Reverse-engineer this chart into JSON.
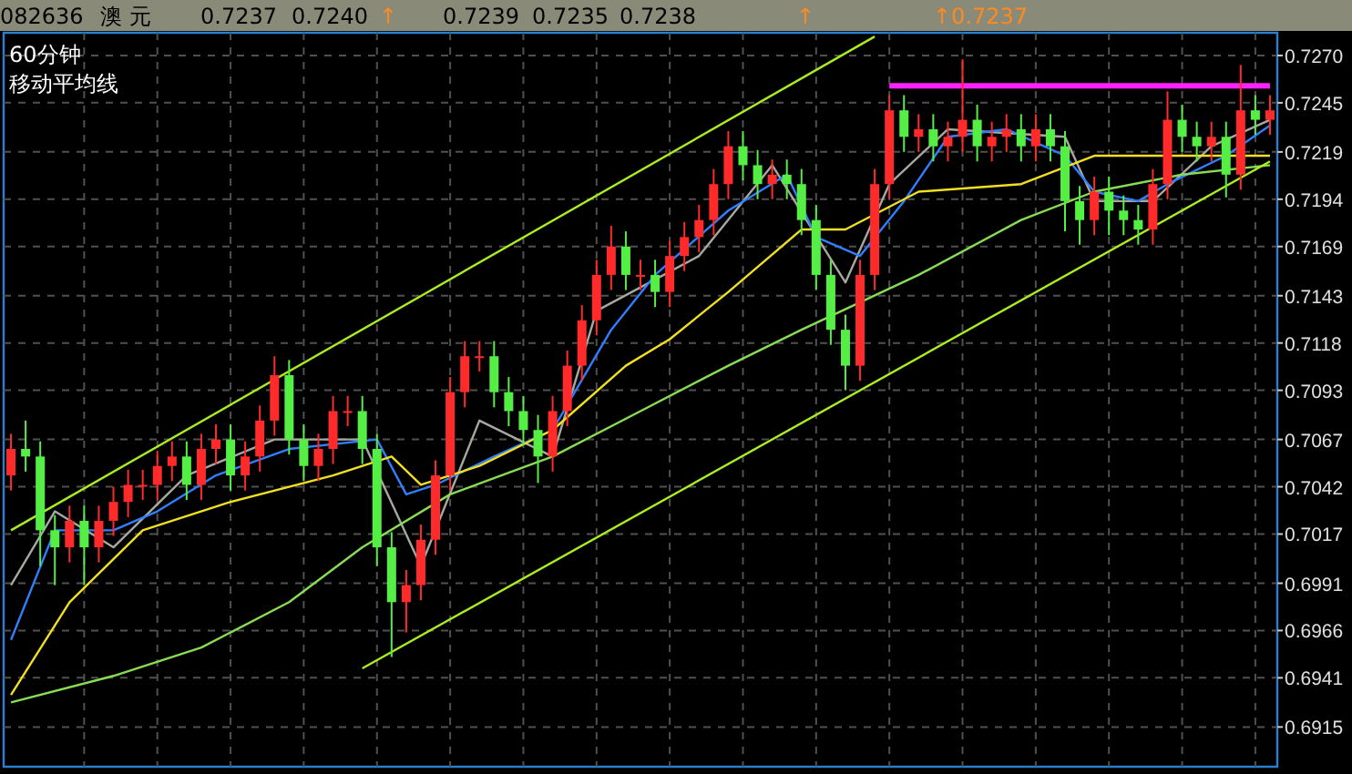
{
  "chart_data": {
    "type": "candlestick",
    "title": "澳 元",
    "subtitle": "60分钟",
    "annotations": [
      "移动平均线",
      "082636",
      "0.7237",
      "0.7240",
      "↑",
      "0.7239",
      "0.7235",
      "0.7238",
      "↑",
      "↑0.7237"
    ],
    "categories": [
      null,
      null,
      null,
      null,
      null,
      null,
      null,
      null,
      null,
      null,
      null,
      null,
      null,
      null,
      null,
      null,
      null,
      null,
      null,
      null,
      null,
      null,
      null,
      null,
      null,
      null,
      null,
      null,
      null,
      null,
      null,
      null,
      null,
      null,
      null,
      null,
      null,
      null,
      null,
      null,
      null,
      null,
      null,
      null,
      null,
      null,
      null,
      null,
      null,
      null,
      null,
      null,
      null,
      null,
      null,
      null,
      null,
      null,
      null,
      null,
      null,
      null,
      null,
      null,
      null,
      null,
      null,
      null,
      null,
      null,
      null,
      null,
      null,
      null,
      null,
      null,
      null,
      null,
      null,
      null,
      null,
      null,
      null,
      null,
      null,
      null,
      null
    ],
    "ohlc": [
      [
        0.7048,
        0.707,
        0.704,
        0.7062
      ],
      [
        0.7062,
        0.7077,
        0.705,
        0.7058
      ],
      [
        0.7058,
        0.7066,
        0.7,
        0.7019
      ],
      [
        0.7019,
        0.7027,
        0.699,
        0.701
      ],
      [
        0.701,
        0.7032,
        0.7002,
        0.7024
      ],
      [
        0.7024,
        0.7032,
        0.699,
        0.701
      ],
      [
        0.701,
        0.7032,
        0.7002,
        0.7024
      ],
      [
        0.7024,
        0.7042,
        0.7016,
        0.7034
      ],
      [
        0.7034,
        0.7051,
        0.7026,
        0.7043
      ],
      [
        0.7043,
        0.7051,
        0.7035,
        0.7043
      ],
      [
        0.7043,
        0.7061,
        0.7035,
        0.7053
      ],
      [
        0.7053,
        0.7066,
        0.7045,
        0.7058
      ],
      [
        0.7058,
        0.7066,
        0.7035,
        0.7043
      ],
      [
        0.7043,
        0.707,
        0.7035,
        0.7062
      ],
      [
        0.7062,
        0.7075,
        0.7054,
        0.7067
      ],
      [
        0.7067,
        0.7075,
        0.704,
        0.7048
      ],
      [
        0.7048,
        0.7066,
        0.704,
        0.7058
      ],
      [
        0.7058,
        0.7085,
        0.705,
        0.7077
      ],
      [
        0.7077,
        0.7111,
        0.7069,
        0.7101
      ],
      [
        0.7101,
        0.7109,
        0.7059,
        0.7067
      ],
      [
        0.7067,
        0.7075,
        0.7045,
        0.7053
      ],
      [
        0.7053,
        0.707,
        0.7045,
        0.7062
      ],
      [
        0.7062,
        0.709,
        0.7054,
        0.7082
      ],
      [
        0.7082,
        0.709,
        0.7074,
        0.7082
      ],
      [
        0.7082,
        0.709,
        0.7054,
        0.7062
      ],
      [
        0.7062,
        0.707,
        0.7,
        0.701
      ],
      [
        0.701,
        0.7018,
        0.6952,
        0.6981
      ],
      [
        0.6981,
        0.6998,
        0.6965,
        0.699
      ],
      [
        0.699,
        0.7022,
        0.6982,
        0.7014
      ],
      [
        0.7014,
        0.7056,
        0.7006,
        0.7048
      ],
      [
        0.7048,
        0.71,
        0.704,
        0.7092
      ],
      [
        0.7092,
        0.7119,
        0.7084,
        0.7111
      ],
      [
        0.7111,
        0.7119,
        0.7103,
        0.7111
      ],
      [
        0.7111,
        0.7119,
        0.7084,
        0.7092
      ],
      [
        0.7092,
        0.71,
        0.7074,
        0.7082
      ],
      [
        0.7082,
        0.709,
        0.7064,
        0.7072
      ],
      [
        0.7072,
        0.708,
        0.7044,
        0.7058
      ],
      [
        0.7058,
        0.709,
        0.705,
        0.7082
      ],
      [
        0.7082,
        0.7114,
        0.7074,
        0.7106
      ],
      [
        0.7106,
        0.7138,
        0.7098,
        0.713
      ],
      [
        0.713,
        0.7162,
        0.7122,
        0.7154
      ],
      [
        0.7154,
        0.718,
        0.7146,
        0.7169
      ],
      [
        0.7169,
        0.7177,
        0.7146,
        0.7154
      ],
      [
        0.7154,
        0.7162,
        0.7146,
        0.7154
      ],
      [
        0.7154,
        0.7162,
        0.7137,
        0.7145
      ],
      [
        0.7145,
        0.7172,
        0.7137,
        0.7164
      ],
      [
        0.7164,
        0.7182,
        0.7156,
        0.7174
      ],
      [
        0.7174,
        0.7191,
        0.7166,
        0.7183
      ],
      [
        0.7183,
        0.721,
        0.7175,
        0.7202
      ],
      [
        0.7202,
        0.723,
        0.7194,
        0.7222
      ],
      [
        0.7222,
        0.723,
        0.7204,
        0.7212
      ],
      [
        0.7212,
        0.722,
        0.7194,
        0.7202
      ],
      [
        0.7202,
        0.7215,
        0.7194,
        0.7207
      ],
      [
        0.7207,
        0.7215,
        0.7194,
        0.7202
      ],
      [
        0.7202,
        0.721,
        0.7175,
        0.7183
      ],
      [
        0.7183,
        0.7191,
        0.7146,
        0.7154
      ],
      [
        0.7154,
        0.7162,
        0.7117,
        0.7125
      ],
      [
        0.7125,
        0.7133,
        0.7093,
        0.7106
      ],
      [
        0.7106,
        0.7162,
        0.7098,
        0.7154
      ],
      [
        0.7154,
        0.721,
        0.7146,
        0.7202
      ],
      [
        0.7202,
        0.7249,
        0.7194,
        0.7241
      ],
      [
        0.7241,
        0.7249,
        0.7219,
        0.7227
      ],
      [
        0.7227,
        0.7239,
        0.7219,
        0.7231
      ],
      [
        0.7231,
        0.7239,
        0.7214,
        0.7222
      ],
      [
        0.7222,
        0.7235,
        0.7214,
        0.7227
      ],
      [
        0.7227,
        0.7268,
        0.7219,
        0.7236
      ],
      [
        0.7236,
        0.7244,
        0.7214,
        0.7222
      ],
      [
        0.7222,
        0.7235,
        0.7214,
        0.7227
      ],
      [
        0.7227,
        0.7239,
        0.7219,
        0.7231
      ],
      [
        0.7231,
        0.7239,
        0.7214,
        0.7222
      ],
      [
        0.7222,
        0.7239,
        0.7214,
        0.7231
      ],
      [
        0.7231,
        0.7239,
        0.7214,
        0.7222
      ],
      [
        0.7222,
        0.723,
        0.7177,
        0.7193
      ],
      [
        0.7193,
        0.7201,
        0.717,
        0.7183
      ],
      [
        0.7183,
        0.7206,
        0.7175,
        0.7198
      ],
      [
        0.7198,
        0.7206,
        0.7175,
        0.7188
      ],
      [
        0.7188,
        0.7196,
        0.7175,
        0.7183
      ],
      [
        0.7183,
        0.7191,
        0.717,
        0.7178
      ],
      [
        0.7178,
        0.721,
        0.717,
        0.7202
      ],
      [
        0.7202,
        0.7251,
        0.7194,
        0.7236
      ],
      [
        0.7236,
        0.7244,
        0.7219,
        0.7227
      ],
      [
        0.7227,
        0.7235,
        0.7214,
        0.7222
      ],
      [
        0.7222,
        0.7235,
        0.7214,
        0.7227
      ],
      [
        0.7227,
        0.7235,
        0.7195,
        0.7207
      ],
      [
        0.7207,
        0.7265,
        0.7199,
        0.7241
      ],
      [
        0.7241,
        0.7249,
        0.7228,
        0.7236
      ],
      [
        0.7236,
        0.7249,
        0.7228,
        0.7241
      ]
    ],
    "series": [
      {
        "type": "line",
        "color": "#a8a8a0",
        "values": [
          0.699,
          null,
          null,
          0.7029,
          null,
          null,
          null,
          0.701,
          null,
          null,
          null,
          null,
          0.7048,
          null,
          null,
          null,
          null,
          null,
          0.7067,
          null,
          null,
          null,
          null,
          null,
          0.7067,
          null,
          null,
          null,
          0.7,
          null,
          null,
          null,
          0.7077,
          null,
          null,
          null,
          null,
          0.7058,
          null,
          null,
          0.7135,
          null,
          null,
          null,
          null,
          null,
          null,
          0.7164,
          null,
          null,
          null,
          null,
          0.7212,
          null,
          null,
          null,
          null,
          0.715,
          null,
          null,
          0.7202,
          null,
          null,
          null,
          0.7231,
          null,
          null,
          null,
          null,
          null,
          null,
          null,
          0.7227,
          null,
          0.7193,
          null,
          null,
          null,
          0.7193,
          null,
          null,
          null,
          0.7222,
          null,
          null,
          null,
          0.7236
        ]
      },
      {
        "type": "line",
        "color": "#2f7fff",
        "values": [
          0.6961,
          null,
          null,
          0.7019,
          null,
          null,
          null,
          0.7019,
          null,
          null,
          0.7029,
          null,
          null,
          null,
          0.7048,
          null,
          null,
          null,
          null,
          0.7062,
          null,
          null,
          null,
          null,
          null,
          0.7067,
          null,
          0.7038,
          null,
          0.7043,
          null,
          null,
          null,
          0.7058,
          null,
          null,
          null,
          0.7072,
          null,
          null,
          null,
          0.7125,
          null,
          null,
          0.7154,
          null,
          null,
          null,
          null,
          0.7188,
          null,
          null,
          null,
          0.7207,
          null,
          0.7174,
          null,
          null,
          0.7164,
          null,
          null,
          0.7193,
          null,
          null,
          0.7227,
          null,
          null,
          null,
          0.7231,
          null,
          null,
          null,
          0.7217,
          null,
          0.7198,
          null,
          null,
          0.7193,
          null,
          0.7202,
          null,
          null,
          null,
          0.7217,
          null,
          null,
          0.7233
        ]
      },
      {
        "type": "line",
        "color": "#f0e020",
        "values": [
          0.6932,
          null,
          null,
          null,
          0.6981,
          null,
          null,
          null,
          null,
          0.7019,
          null,
          null,
          null,
          null,
          null,
          0.7034,
          null,
          null,
          null,
          null,
          null,
          null,
          0.7048,
          null,
          null,
          null,
          0.7058,
          null,
          0.7043,
          null,
          null,
          null,
          0.7053,
          null,
          null,
          null,
          null,
          0.7072,
          null,
          null,
          null,
          null,
          0.7106,
          null,
          null,
          0.712,
          null,
          null,
          null,
          0.7145,
          null,
          null,
          null,
          null,
          0.7178,
          null,
          null,
          0.7178,
          null,
          null,
          null,
          null,
          0.7198,
          null,
          null,
          null,
          null,
          null,
          null,
          0.7202,
          null,
          null,
          null,
          null,
          0.7217,
          null,
          null,
          null,
          null,
          0.7217,
          null,
          null,
          null,
          null,
          null,
          null,
          0.7217
        ]
      },
      {
        "type": "line",
        "color": "#88dd55",
        "values": [
          0.6928,
          null,
          null,
          null,
          null,
          null,
          null,
          0.6942,
          null,
          null,
          null,
          null,
          null,
          0.6957,
          null,
          null,
          null,
          null,
          null,
          0.6981,
          null,
          null,
          null,
          null,
          0.701,
          null,
          null,
          null,
          null,
          null,
          0.7038,
          null,
          null,
          null,
          null,
          null,
          null,
          0.7058,
          null,
          null,
          null,
          null,
          null,
          0.7082,
          null,
          null,
          null,
          null,
          null,
          0.7106,
          null,
          null,
          null,
          null,
          0.7125,
          null,
          null,
          null,
          null,
          null,
          null,
          null,
          0.7154,
          null,
          null,
          null,
          null,
          null,
          null,
          0.7183,
          null,
          null,
          null,
          null,
          0.7198,
          null,
          null,
          null,
          null,
          null,
          0.7207,
          null,
          null,
          null,
          null,
          null,
          0.7212
        ]
      },
      {
        "type": "line",
        "color": "#aaee22",
        "values": [
          0.7019,
          null,
          null,
          null,
          null,
          null,
          null,
          null,
          null,
          null,
          null,
          null,
          null,
          null,
          null,
          null,
          null,
          null,
          null,
          null,
          null,
          null,
          null,
          null,
          null,
          null,
          null,
          null,
          null,
          null,
          null,
          null,
          null,
          null,
          null,
          null,
          null,
          null,
          null,
          null,
          null,
          null,
          null,
          null,
          null,
          null,
          null,
          null,
          null,
          null,
          null,
          null,
          null,
          null,
          null,
          null,
          null,
          null,
          null,
          0.728,
          null,
          null,
          null,
          null,
          null,
          null,
          null,
          null,
          null,
          null,
          null,
          null,
          null,
          null,
          null,
          null,
          null,
          null,
          null,
          null,
          null,
          null,
          null,
          null,
          null,
          null,
          null
        ]
      },
      {
        "type": "line",
        "color": "#aaee22",
        "values": [
          null,
          null,
          null,
          null,
          null,
          null,
          null,
          null,
          null,
          null,
          null,
          null,
          null,
          null,
          null,
          null,
          null,
          null,
          null,
          null,
          null,
          null,
          null,
          null,
          0.6946,
          null,
          null,
          null,
          null,
          null,
          null,
          null,
          null,
          null,
          null,
          null,
          null,
          null,
          null,
          null,
          null,
          null,
          null,
          null,
          null,
          null,
          null,
          null,
          null,
          null,
          null,
          null,
          null,
          null,
          null,
          null,
          null,
          null,
          null,
          null,
          null,
          null,
          null,
          null,
          null,
          null,
          null,
          null,
          null,
          null,
          null,
          null,
          null,
          null,
          null,
          null,
          null,
          null,
          null,
          null,
          null,
          null,
          null,
          null,
          null,
          null,
          0.7214
        ]
      },
      {
        "type": "line",
        "color": "#ff22ff",
        "values": [
          null,
          null,
          null,
          null,
          null,
          null,
          null,
          null,
          null,
          null,
          null,
          null,
          null,
          null,
          null,
          null,
          null,
          null,
          null,
          null,
          null,
          null,
          null,
          null,
          null,
          null,
          null,
          null,
          null,
          null,
          null,
          null,
          null,
          null,
          null,
          null,
          null,
          null,
          null,
          null,
          null,
          null,
          null,
          null,
          null,
          null,
          null,
          null,
          null,
          null,
          null,
          null,
          null,
          null,
          null,
          null,
          null,
          null,
          null,
          null,
          0.7254,
          null,
          null,
          null,
          null,
          null,
          null,
          null,
          null,
          null,
          null,
          null,
          null,
          null,
          null,
          null,
          null,
          null,
          null,
          null,
          null,
          null,
          null,
          null,
          null,
          null,
          0.7254
        ]
      }
    ],
    "ylim": [
      0.6894,
      0.7282
    ],
    "yticks": [
      {
        "value": 0.727,
        "label": "0.7270"
      },
      {
        "value": 0.7245,
        "label": "0.7245"
      },
      {
        "value": 0.7219,
        "label": "0.7219"
      },
      {
        "value": 0.7194,
        "label": "0.7194"
      },
      {
        "value": 0.7169,
        "label": "0.7169"
      },
      {
        "value": 0.7143,
        "label": "0.7143"
      },
      {
        "value": 0.7118,
        "label": "0.7118"
      },
      {
        "value": 0.7093,
        "label": "0.7093"
      },
      {
        "value": 0.7067,
        "label": "0.7067"
      },
      {
        "value": 0.7042,
        "label": "0.7042"
      },
      {
        "value": 0.7017,
        "label": "0.7017"
      },
      {
        "value": 0.6991,
        "label": "0.6991"
      },
      {
        "value": 0.6966,
        "label": "0.6966"
      },
      {
        "value": 0.6941,
        "label": "0.6941"
      },
      {
        "value": 0.6915,
        "label": "0.6915"
      }
    ],
    "grid": true,
    "tick_labels": "y"
  }
}
